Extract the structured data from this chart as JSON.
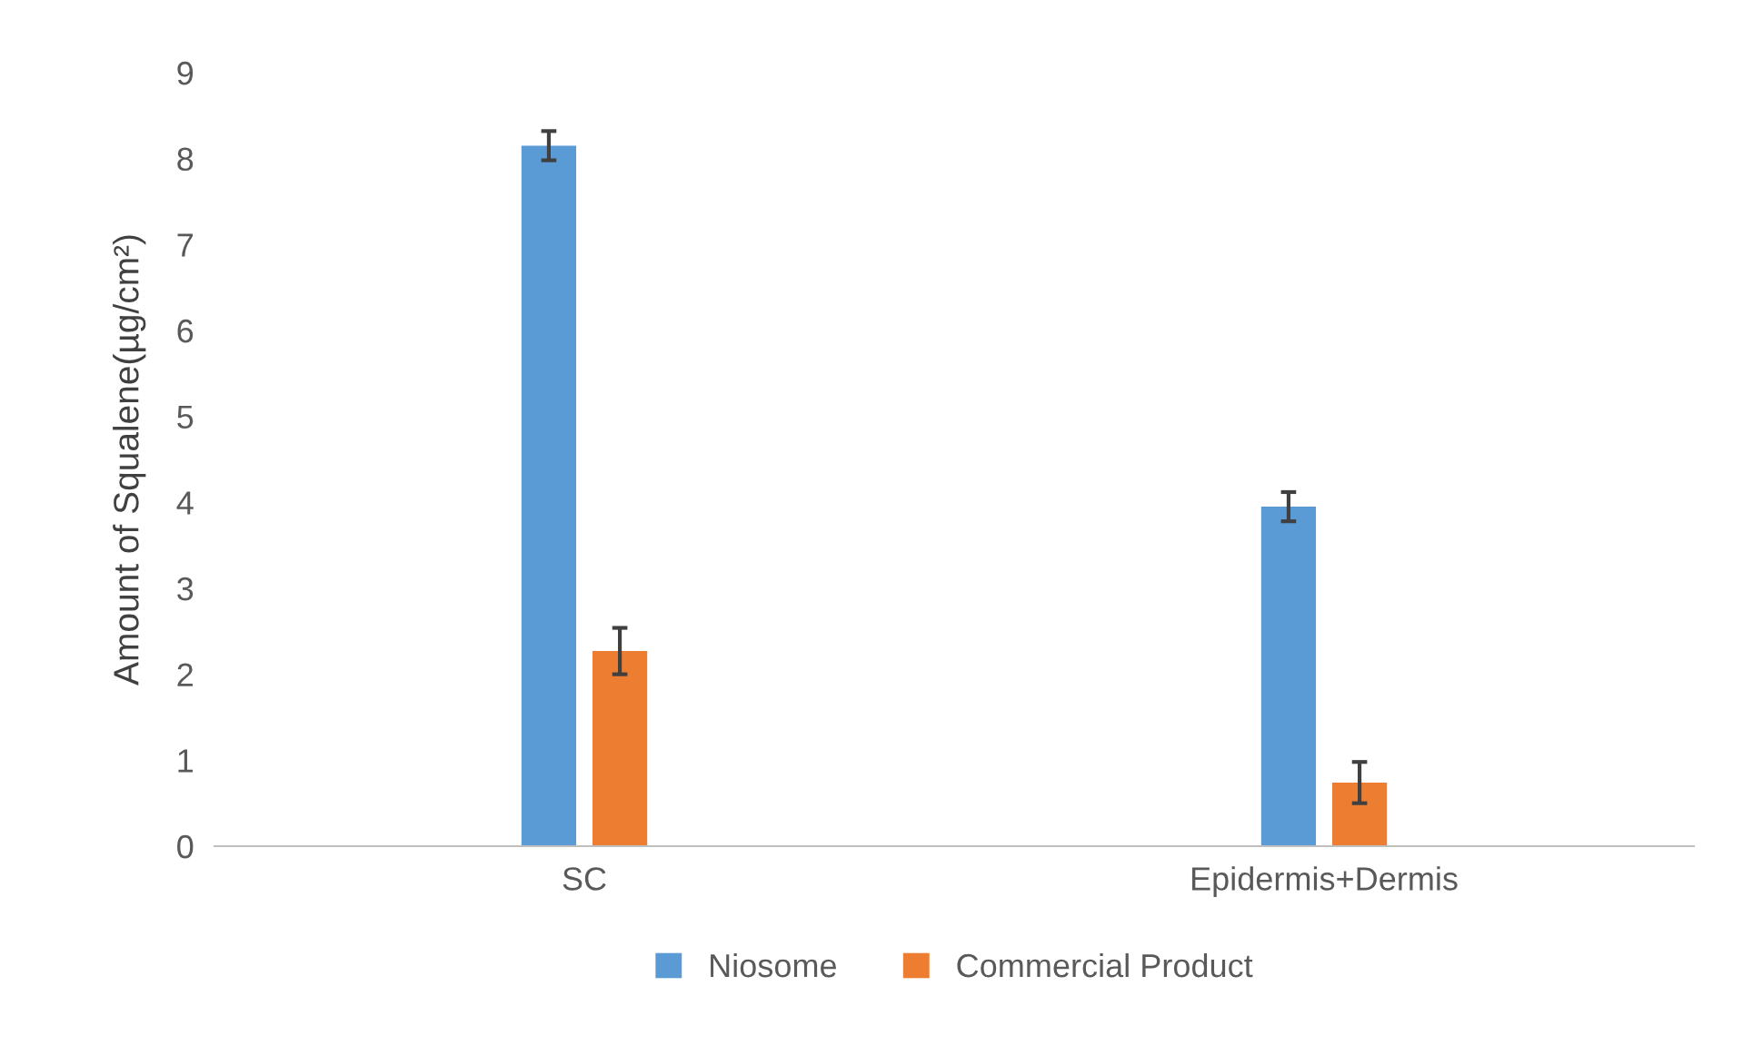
{
  "chart_data": {
    "type": "bar",
    "ylabel": "Amount of Squalene(µg/cm²)",
    "categories": [
      "SC",
      "Epidermis+Dermis"
    ],
    "series": [
      {
        "name": "Niosome",
        "color": "#5b9bd5",
        "values": [
          8.15,
          3.95
        ],
        "errors": [
          0.17,
          0.17
        ]
      },
      {
        "name": "Commercial Product",
        "color": "#ed7d31",
        "values": [
          2.27,
          0.74
        ],
        "errors": [
          0.27,
          0.24
        ]
      }
    ],
    "ylim": [
      0,
      9
    ],
    "yticks": [
      0,
      1,
      2,
      3,
      4,
      5,
      6,
      7,
      8,
      9
    ],
    "grid": false,
    "legend": "bottom"
  }
}
